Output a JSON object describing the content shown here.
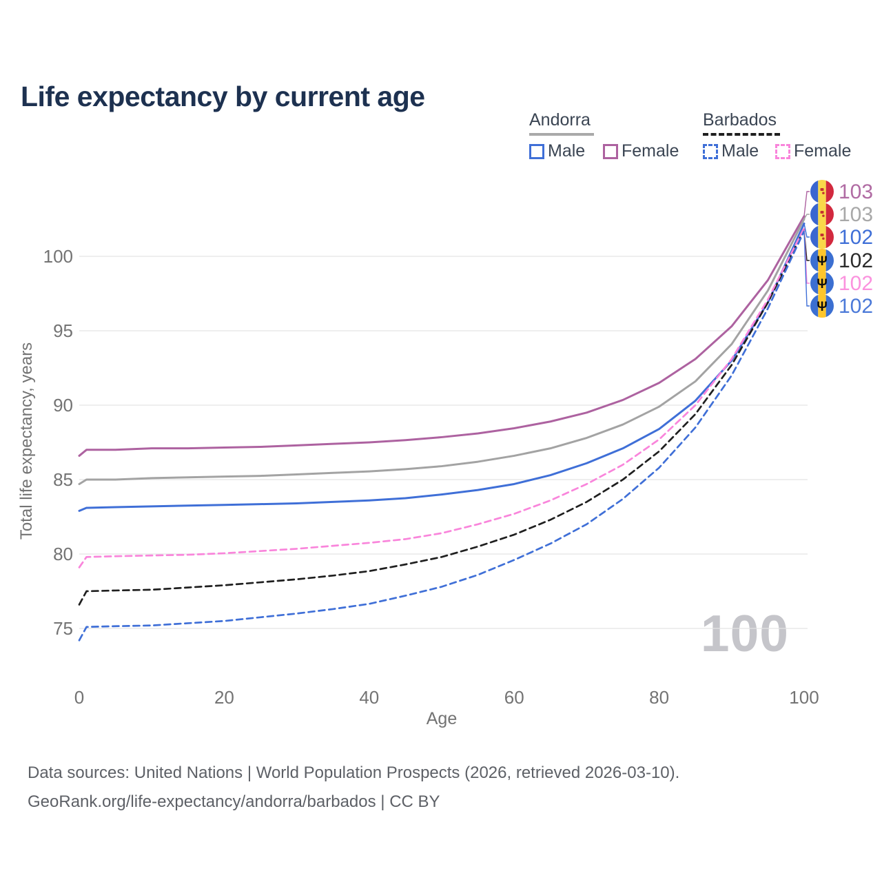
{
  "title": "Life expectancy by current age",
  "legend": {
    "groups": [
      {
        "label": "Andorra",
        "line_style": "solid",
        "line_color": "#a9a9a9"
      },
      {
        "label": "Barbados",
        "line_style": "dashed",
        "line_color": "#1f1f1f"
      }
    ],
    "items": [
      {
        "group": "Andorra",
        "label": "Male",
        "color": "#3f6fd7",
        "style": "solid"
      },
      {
        "group": "Andorra",
        "label": "Female",
        "color": "#ad62a0",
        "style": "solid"
      },
      {
        "group": "Barbados",
        "label": "Male",
        "color": "#3f6fd7",
        "style": "dashed"
      },
      {
        "group": "Barbados",
        "label": "Female",
        "color": "#f985db",
        "style": "dashed"
      }
    ]
  },
  "watermark": "100",
  "footer": {
    "line1": "Data sources: United Nations | World Population Prospects (2026, retrieved 2026-03-10).",
    "line2": "GeoRank.org/life-expectancy/andorra/barbados | CC BY"
  },
  "chart_data": {
    "type": "line",
    "title": "Life expectancy by current age",
    "xlabel": "Age",
    "ylabel": "Total life expectancy, years",
    "xlim": [
      0,
      100
    ],
    "ylim": [
      73.5,
      104
    ],
    "xticks": [
      0,
      20,
      40,
      60,
      80,
      100
    ],
    "yticks": [
      75,
      80,
      85,
      90,
      95,
      100
    ],
    "grid": true,
    "legend_position": "top-right",
    "x": [
      0,
      1,
      5,
      10,
      15,
      20,
      25,
      30,
      35,
      40,
      45,
      50,
      55,
      60,
      65,
      70,
      75,
      80,
      85,
      90,
      95,
      100
    ],
    "series": [
      {
        "name": "Andorra Female",
        "country": "Andorra",
        "sex": "Female",
        "flag": "andorra",
        "color": "#ad62a0",
        "dash": false,
        "end_label": "103",
        "end_label_color": "#b06ba3",
        "values": [
          86.6,
          87.0,
          87.0,
          87.1,
          87.1,
          87.15,
          87.2,
          87.3,
          87.4,
          87.5,
          87.65,
          87.85,
          88.1,
          88.45,
          88.9,
          89.5,
          90.35,
          91.5,
          93.1,
          95.3,
          98.4,
          102.7
        ]
      },
      {
        "name": "Andorra Both sexes",
        "country": "Andorra",
        "sex": "Both",
        "flag": "andorra",
        "color": "#a3a3a3",
        "dash": false,
        "end_label": "103",
        "end_label_color": "#a8a8a8",
        "values": [
          84.7,
          85.0,
          85.0,
          85.1,
          85.15,
          85.2,
          85.25,
          85.35,
          85.45,
          85.55,
          85.7,
          85.9,
          86.2,
          86.6,
          87.1,
          87.8,
          88.7,
          89.9,
          91.6,
          94.1,
          97.7,
          102.5
        ]
      },
      {
        "name": "Andorra Male",
        "country": "Andorra",
        "sex": "Male",
        "flag": "andorra",
        "color": "#3f6fd7",
        "dash": false,
        "end_label": "102",
        "end_label_color": "#3f6fd7",
        "values": [
          82.9,
          83.1,
          83.15,
          83.2,
          83.25,
          83.3,
          83.35,
          83.4,
          83.5,
          83.6,
          83.75,
          84.0,
          84.3,
          84.7,
          85.3,
          86.1,
          87.1,
          88.4,
          90.3,
          93.0,
          96.9,
          102.2
        ]
      },
      {
        "name": "Barbados Both sexes",
        "country": "Barbados",
        "sex": "Both",
        "flag": "barbados",
        "color": "#1f1f1f",
        "dash": true,
        "end_label": "102",
        "end_label_color": "#2b2b2b",
        "values": [
          76.6,
          77.5,
          77.55,
          77.6,
          77.75,
          77.9,
          78.1,
          78.3,
          78.55,
          78.85,
          79.3,
          79.8,
          80.5,
          81.3,
          82.3,
          83.5,
          85.0,
          86.9,
          89.4,
          92.7,
          96.9,
          101.8
        ]
      },
      {
        "name": "Barbados Female",
        "country": "Barbados",
        "sex": "Female",
        "flag": "barbados",
        "color": "#f985db",
        "dash": true,
        "end_label": "102",
        "end_label_color": "#fb92de",
        "values": [
          79.1,
          79.8,
          79.85,
          79.9,
          79.95,
          80.05,
          80.2,
          80.35,
          80.55,
          80.75,
          81.0,
          81.4,
          82.0,
          82.7,
          83.6,
          84.7,
          86.0,
          87.7,
          90.0,
          93.1,
          97.1,
          101.9
        ]
      },
      {
        "name": "Barbados Male",
        "country": "Barbados",
        "sex": "Male",
        "flag": "barbados",
        "color": "#3f6fd7",
        "dash": true,
        "end_label": "102",
        "end_label_color": "#4b79d8",
        "values": [
          74.2,
          75.1,
          75.15,
          75.2,
          75.35,
          75.5,
          75.75,
          76.0,
          76.3,
          76.65,
          77.2,
          77.8,
          78.6,
          79.6,
          80.7,
          82.0,
          83.7,
          85.8,
          88.5,
          92.0,
          96.5,
          101.7
        ]
      }
    ]
  }
}
